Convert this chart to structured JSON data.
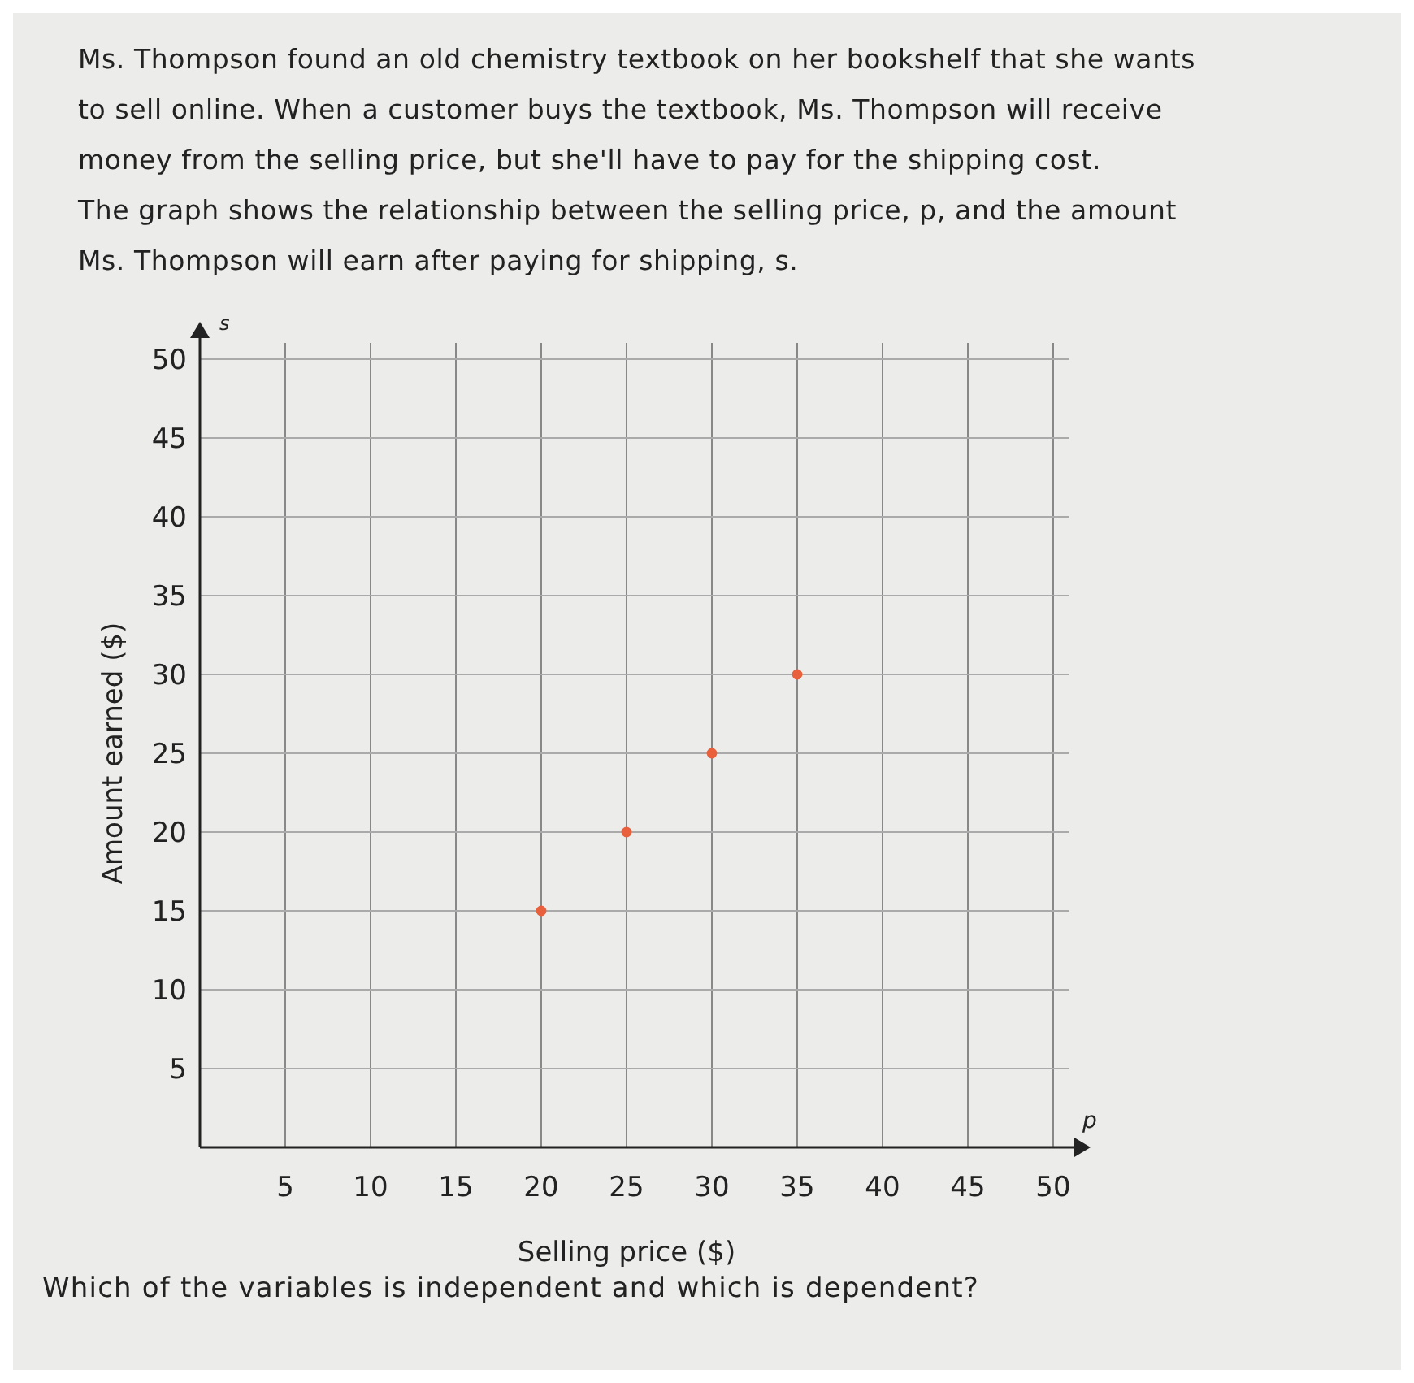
{
  "chart_data": {
    "type": "scatter",
    "title": "Ms. Thompson found an old chemistry textbook on her bookshelf that she wants to sell online. When a customer buys the textbook, Ms. Thompson will receive money from the selling price, but she'll have to pay for the shipping cost. The graph shows the relationship between the selling price, p, and the amount Ms. Thompson will earn after paying for shipping, s.",
    "xlabel": "Selling price ($)",
    "ylabel": "Amount earned ($)",
    "x": [
      20,
      25,
      30,
      35
    ],
    "values": [
      15,
      20,
      25,
      30
    ],
    "color": "#e8603c",
    "marker": "circle",
    "xlim": [
      0,
      50
    ],
    "ylim": [
      0,
      50
    ],
    "xticks": [
      5,
      10,
      15,
      20,
      25,
      30,
      35,
      40,
      45,
      50
    ],
    "yticks": [
      5,
      10,
      15,
      20,
      25,
      30,
      35,
      40,
      45,
      50
    ],
    "grid": true,
    "annotations": [
      "s",
      "p",
      "Which of the variables is independent and which is dependent?"
    ]
  }
}
